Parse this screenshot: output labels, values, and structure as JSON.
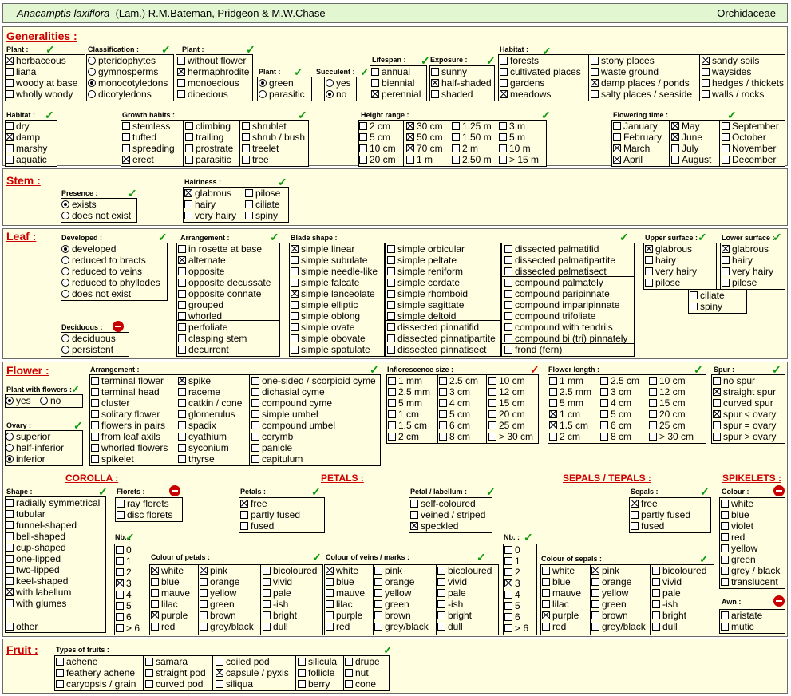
{
  "header": {
    "genus_species": "Anacamptis laxiflora",
    "author": "(Lam.) R.M.Bateman, Pridgeon & M.W.Chase",
    "family": "Orchidaceae"
  },
  "section_titles": [
    "Generalities :",
    "Stem :",
    "Leaf :",
    "Flower :",
    "Fruit :"
  ],
  "subtitles": [
    "COROLLA :",
    "PETALS :",
    "SEPALS / TEPALS :",
    "SPIKELETS :"
  ],
  "group_labels": [
    "Plant :",
    "Classification :",
    "Plant :",
    "Plant :",
    "Succulent :",
    "Lifespan :",
    "Exposure :",
    "Habitat :",
    "Habitat :",
    "Growth habits :",
    "Height range :",
    "Flowering time :",
    "Presence :",
    "Hairiness :",
    "Developed :",
    "Arrangement :",
    "Blade shape :",
    "Upper surface :",
    "Lower surface :",
    "Deciduous :",
    "Plant with flowers :",
    "Arrangement :",
    "Inflorescence size :",
    "Flower length :",
    "Spur :",
    "Ovary :",
    "Shape :",
    "Florets :",
    "Petals :",
    "Petal / labellum :",
    "Sepals :",
    "Colour :",
    "Nb. :",
    "Colour of petals :",
    "Colour of veins / marks :",
    "Nb. :",
    "Colour of sepals :",
    "Awn :",
    "Types of fruits :"
  ],
  "options": [
    "herbaceous",
    "liana",
    "woody at base",
    "wholly woody",
    "pteridophytes",
    "gymnosperms",
    "monocotyledons",
    "dicotyledons",
    "without flower",
    "hermaphrodite",
    "monoecious",
    "dioecious",
    "green",
    "parasitic",
    "yes",
    "no",
    "annual",
    "biennial",
    "perennial",
    "sunny",
    "half-shaded",
    "shaded",
    "forests",
    "cultivated places",
    "gardens",
    "meadows",
    "stony places",
    "waste ground",
    "damp places / ponds",
    "salty places / seaside",
    "sandy soils",
    "waysides",
    "hedges / thickets",
    "walls / rocks",
    "dry",
    "damp",
    "marshy",
    "aquatic",
    "stemless",
    "tufted",
    "spreading",
    "erect",
    "climbing",
    "trailing",
    "prostrate",
    "parasitic",
    "shrublet",
    "shrub / bush",
    "treelet",
    "tree",
    "2 cm",
    "5 cm",
    "10 cm",
    "20 cm",
    "30 cm",
    "50 cm",
    "70 cm",
    "1 m",
    "1.25 m",
    "1.50 m",
    "2 m",
    "2.50 m",
    "3 m",
    "5 m",
    "10 m",
    "> 15 m",
    "January",
    "February",
    "March",
    "April",
    "May",
    "June",
    "July",
    "August",
    "September",
    "October",
    "November",
    "December",
    "exists",
    "does not exist",
    "glabrous",
    "hairy",
    "very hairy",
    "pilose",
    "ciliate",
    "spiny",
    "developed",
    "reduced to bracts",
    "reduced to veins",
    "reduced to phyllodes",
    "does not exist",
    "in rosette at base",
    "alternate",
    "opposite",
    "opposite decussate",
    "opposite connate",
    "grouped",
    "whorled",
    "perfoliate",
    "clasping stem",
    "decurrent",
    "simple linear",
    "simple subulate",
    "simple needle-like",
    "simple falcate",
    "simple lanceolate",
    "simple elliptic",
    "simple oblong",
    "simple ovate",
    "simple obovate",
    "simple spatulate",
    "simple orbicular",
    "simple peltate",
    "simple reniform",
    "simple cordate",
    "simple rhomboid",
    "simple sagittate",
    "simple deltoid",
    "dissected pinnatifid",
    "dissected pinnatipartite",
    "dissected pinnatisect",
    "dissected palmatifid",
    "dissected palmatipartite",
    "dissected palmatisect",
    "compound palmately",
    "compound paripinnate",
    "compound imparipinnate",
    "compound trifoliate",
    "compound with tendrils",
    "compound bi (tri) pinnately",
    "frond  (fern)",
    "glabrous",
    "hairy",
    "very hairy",
    "pilose",
    "ciliate",
    "spiny",
    "glabrous",
    "hairy",
    "very hairy",
    "pilose",
    "deciduous",
    "persistent",
    "yes",
    "no",
    "superior",
    "half-inferior",
    "inferior",
    "terminal flower",
    "terminal head",
    "cluster",
    "solitary flower",
    "flowers in pairs",
    "from leaf axils",
    "whorled flowers",
    "spikelet",
    "spike",
    "raceme",
    "catkin / cone",
    "glomerulus",
    "spadix",
    "cyathium",
    "syconium",
    "thyrse",
    "one-sided / scorpioid cyme",
    "dichasial cyme",
    "compound cyme",
    "simple umbel",
    "compound umbel",
    "corymb",
    "panicle",
    "capitulum",
    "1 mm",
    "2.5 mm",
    "5 mm",
    "1 cm",
    "1.5 cm",
    "2 cm",
    "2.5 cm",
    "3 cm",
    "4 cm",
    "5 cm",
    "6 cm",
    "8 cm",
    "10 cm",
    "12 cm",
    "15 cm",
    "20 cm",
    "25 cm",
    "> 30 cm",
    "1 mm",
    "2.5 mm",
    "5 mm",
    "1 cm",
    "1.5 cm",
    "2 cm",
    "2.5 cm",
    "3 cm",
    "4 cm",
    "5 cm",
    "6 cm",
    "8 cm",
    "10 cm",
    "12 cm",
    "15 cm",
    "20 cm",
    "25 cm",
    "> 30 cm",
    "no spur",
    "straight spur",
    "curved spur",
    "spur < ovary",
    "spur = ovary",
    "spur > ovary",
    "radially symmetrical",
    "tubular",
    "funnel-shaped",
    "bell-shaped",
    "cup-shaped",
    "one-lipped",
    "two-lipped",
    "keel-shaped",
    "with labellum",
    "with glumes",
    "other",
    "ray florets",
    "disc florets",
    "free",
    "partly fused",
    "fused",
    "self-coloured",
    "veined / striped",
    "speckled",
    "free",
    "partly fused",
    "fused",
    "white",
    "blue",
    "violet",
    "red",
    "yellow",
    "green",
    "grey / black",
    "translucent",
    "0",
    "1",
    "2",
    "3",
    "4",
    "5",
    "6",
    "> 6",
    "white",
    "blue",
    "mauve",
    "lilac",
    "purple",
    "red",
    "pink",
    "orange",
    "yellow",
    "green",
    "brown",
    "grey/black",
    "bicoloured",
    "vivid",
    "pale",
    "-ish",
    "bright",
    "dull",
    "white",
    "blue",
    "mauve",
    "lilac",
    "purple",
    "red",
    "pink",
    "orange",
    "yellow",
    "green",
    "brown",
    "grey/black",
    "bicoloured",
    "vivid",
    "pale",
    "-ish",
    "bright",
    "dull",
    "0",
    "1",
    "2",
    "3",
    "4",
    "5",
    "6",
    "> 6",
    "white",
    "blue",
    "mauve",
    "lilac",
    "purple",
    "red",
    "pink",
    "orange",
    "yellow",
    "green",
    "brown",
    "grey/black",
    "bicoloured",
    "vivid",
    "pale",
    "-ish",
    "bright",
    "dull",
    "aristate",
    "mutic",
    "achene",
    "feathery achene",
    "caryopsis / grain",
    "samara",
    "straight pod",
    "curved pod",
    "coiled pod",
    "capsule / pyxis",
    "siliqua",
    "silicula",
    "follicle",
    "berry",
    "drupe",
    "nut",
    "cone"
  ]
}
